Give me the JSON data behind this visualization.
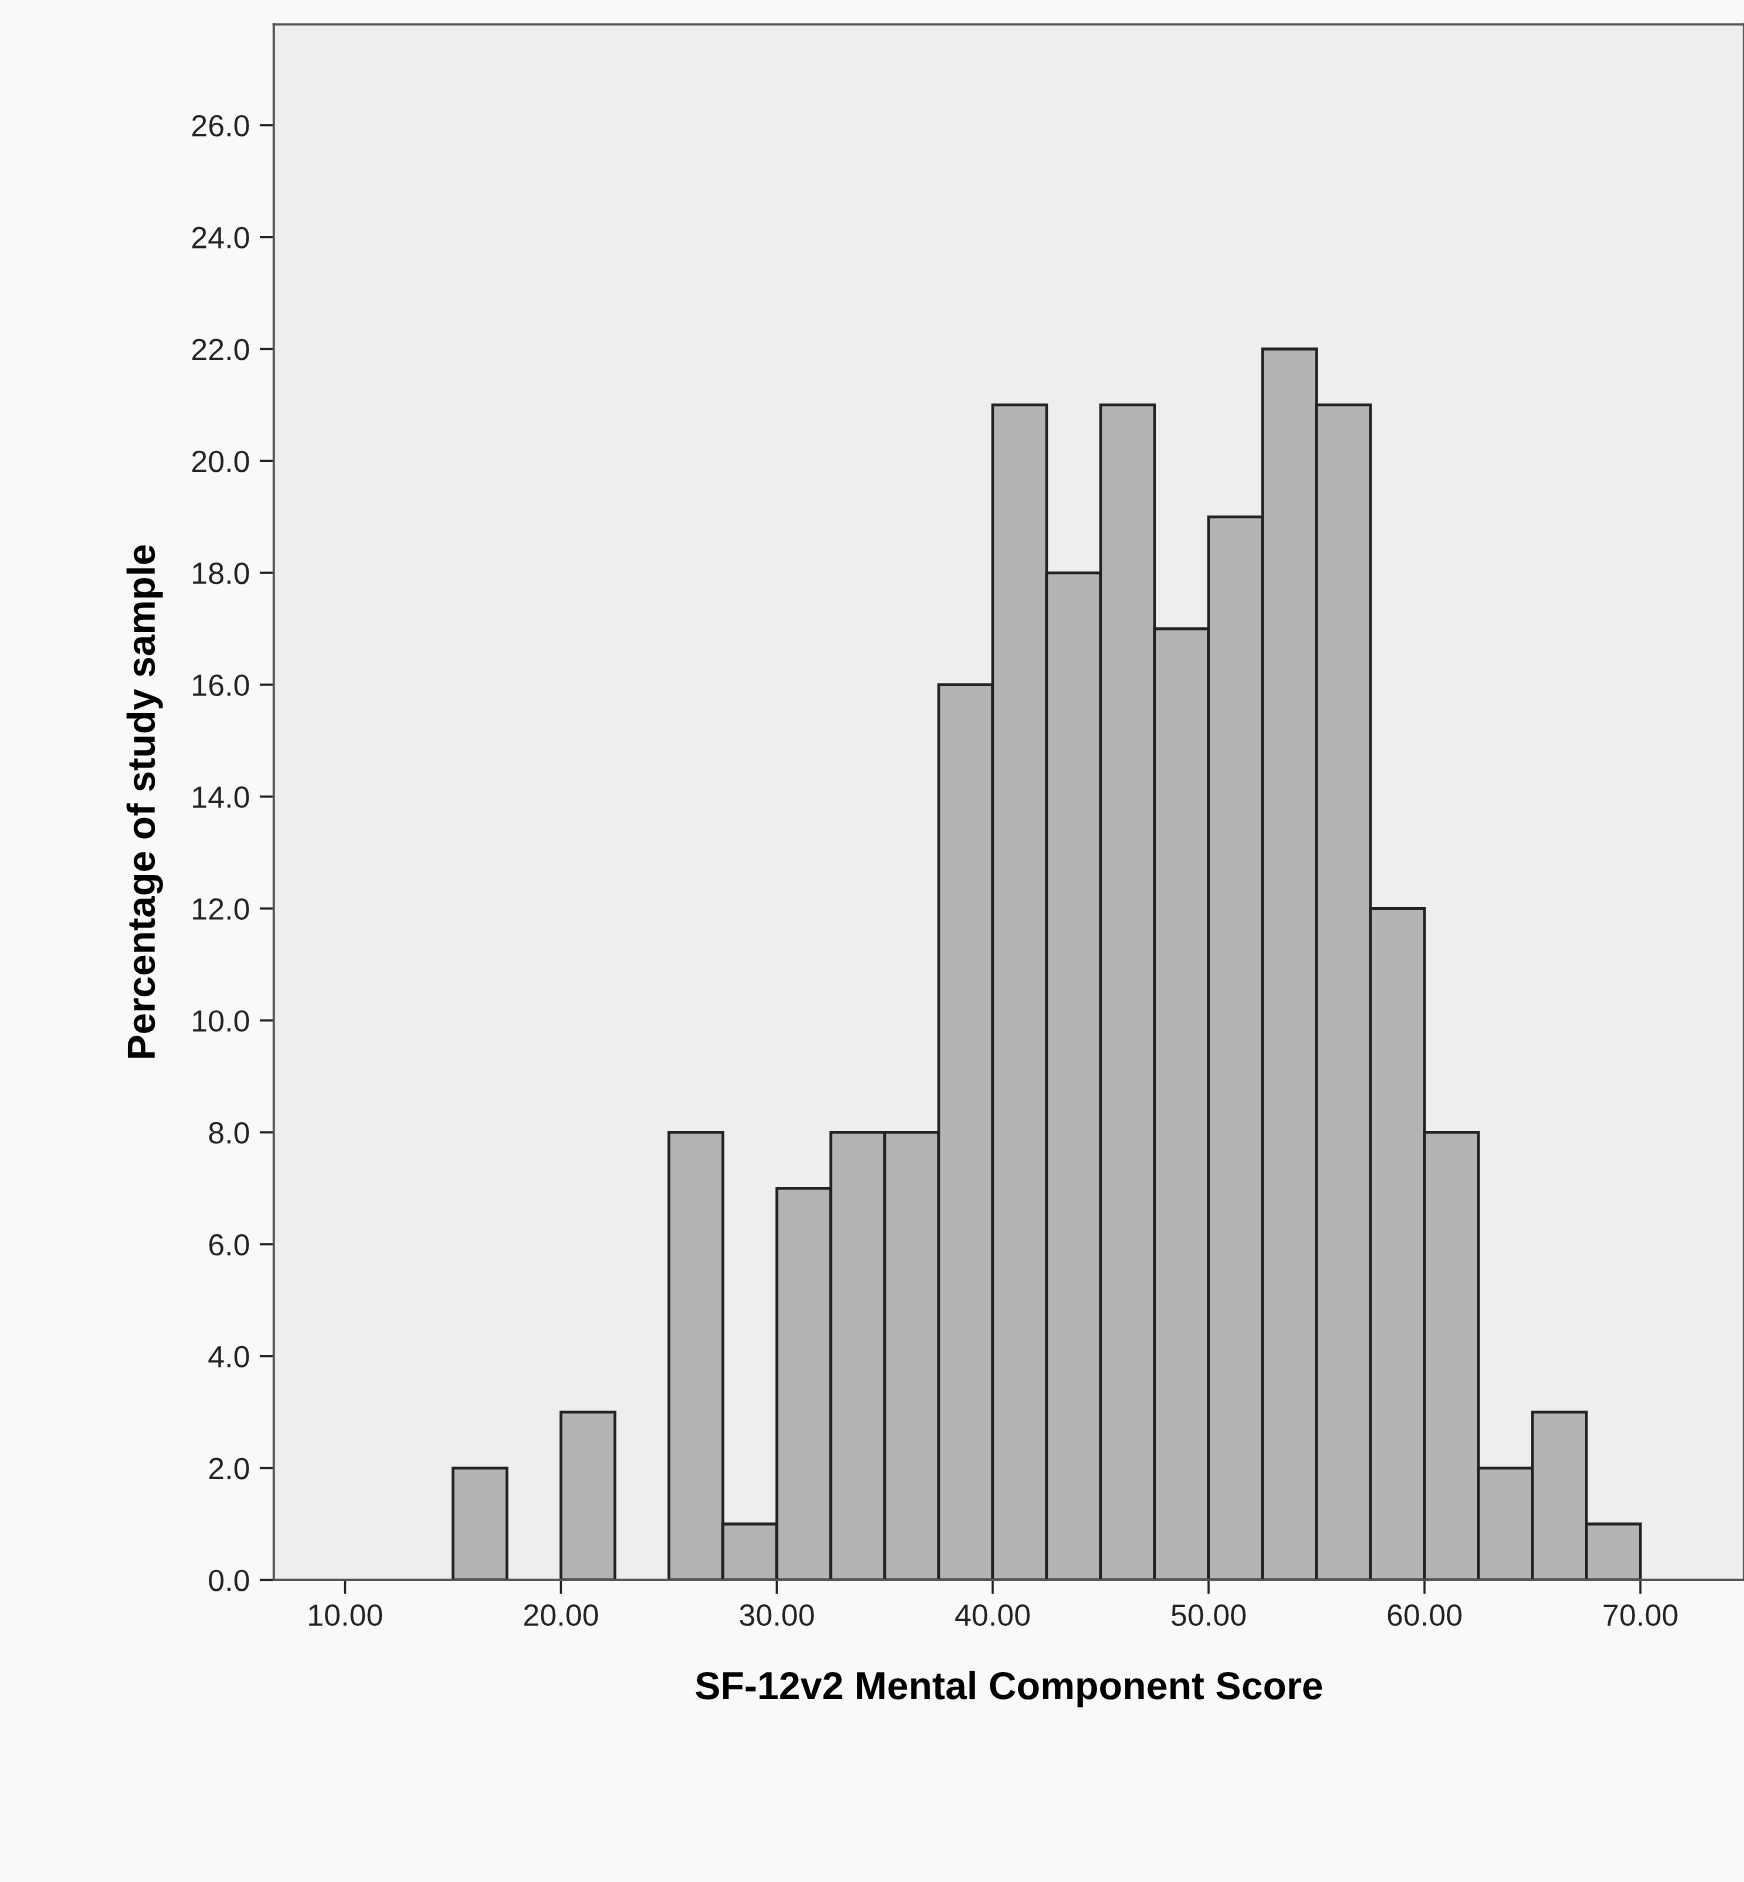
{
  "chart_data": {
    "type": "histogram",
    "xlabel": "SF-12v2 Mental Component Score",
    "ylabel": "Percentage of study sample",
    "bins": [
      15,
      17.5,
      20,
      22.5,
      25,
      27.5,
      30,
      32.5,
      35,
      37.5,
      40,
      42.5,
      45,
      47.5,
      50,
      52.5,
      55,
      57.5,
      60,
      62.5,
      65,
      67.5,
      70
    ],
    "values": [
      2,
      0,
      3,
      0,
      8,
      1,
      7,
      8,
      8,
      16,
      21,
      18,
      21,
      17,
      19,
      22,
      21,
      12,
      8,
      2,
      3,
      1
    ],
    "color": "#b4b4b4",
    "xlim": [
      6.7,
      74.8
    ],
    "xticks": [
      {
        "value": 10,
        "label": "10.00"
      },
      {
        "value": 20,
        "label": "20.00"
      },
      {
        "value": 30,
        "label": "30.00"
      },
      {
        "value": 40,
        "label": "40.00"
      },
      {
        "value": 50,
        "label": "50.00"
      },
      {
        "value": 60,
        "label": "60.00"
      },
      {
        "value": 70,
        "label": "70.00"
      }
    ],
    "ylim": [
      0,
      27.8
    ],
    "yticks": [
      {
        "value": 0,
        "label": "0.0"
      },
      {
        "value": 2,
        "label": "2.0"
      },
      {
        "value": 4,
        "label": "4.0"
      },
      {
        "value": 6,
        "label": "6.0"
      },
      {
        "value": 8,
        "label": "8.0"
      },
      {
        "value": 10,
        "label": "10.0"
      },
      {
        "value": 12,
        "label": "12.0"
      },
      {
        "value": 14,
        "label": "14.0"
      },
      {
        "value": 16,
        "label": "16.0"
      },
      {
        "value": 18,
        "label": "18.0"
      },
      {
        "value": 20,
        "label": "20.0"
      },
      {
        "value": 22,
        "label": "22.0"
      },
      {
        "value": 24,
        "label": "24.0"
      },
      {
        "value": 26,
        "label": "26.0"
      }
    ],
    "grid": false,
    "legend": false
  }
}
